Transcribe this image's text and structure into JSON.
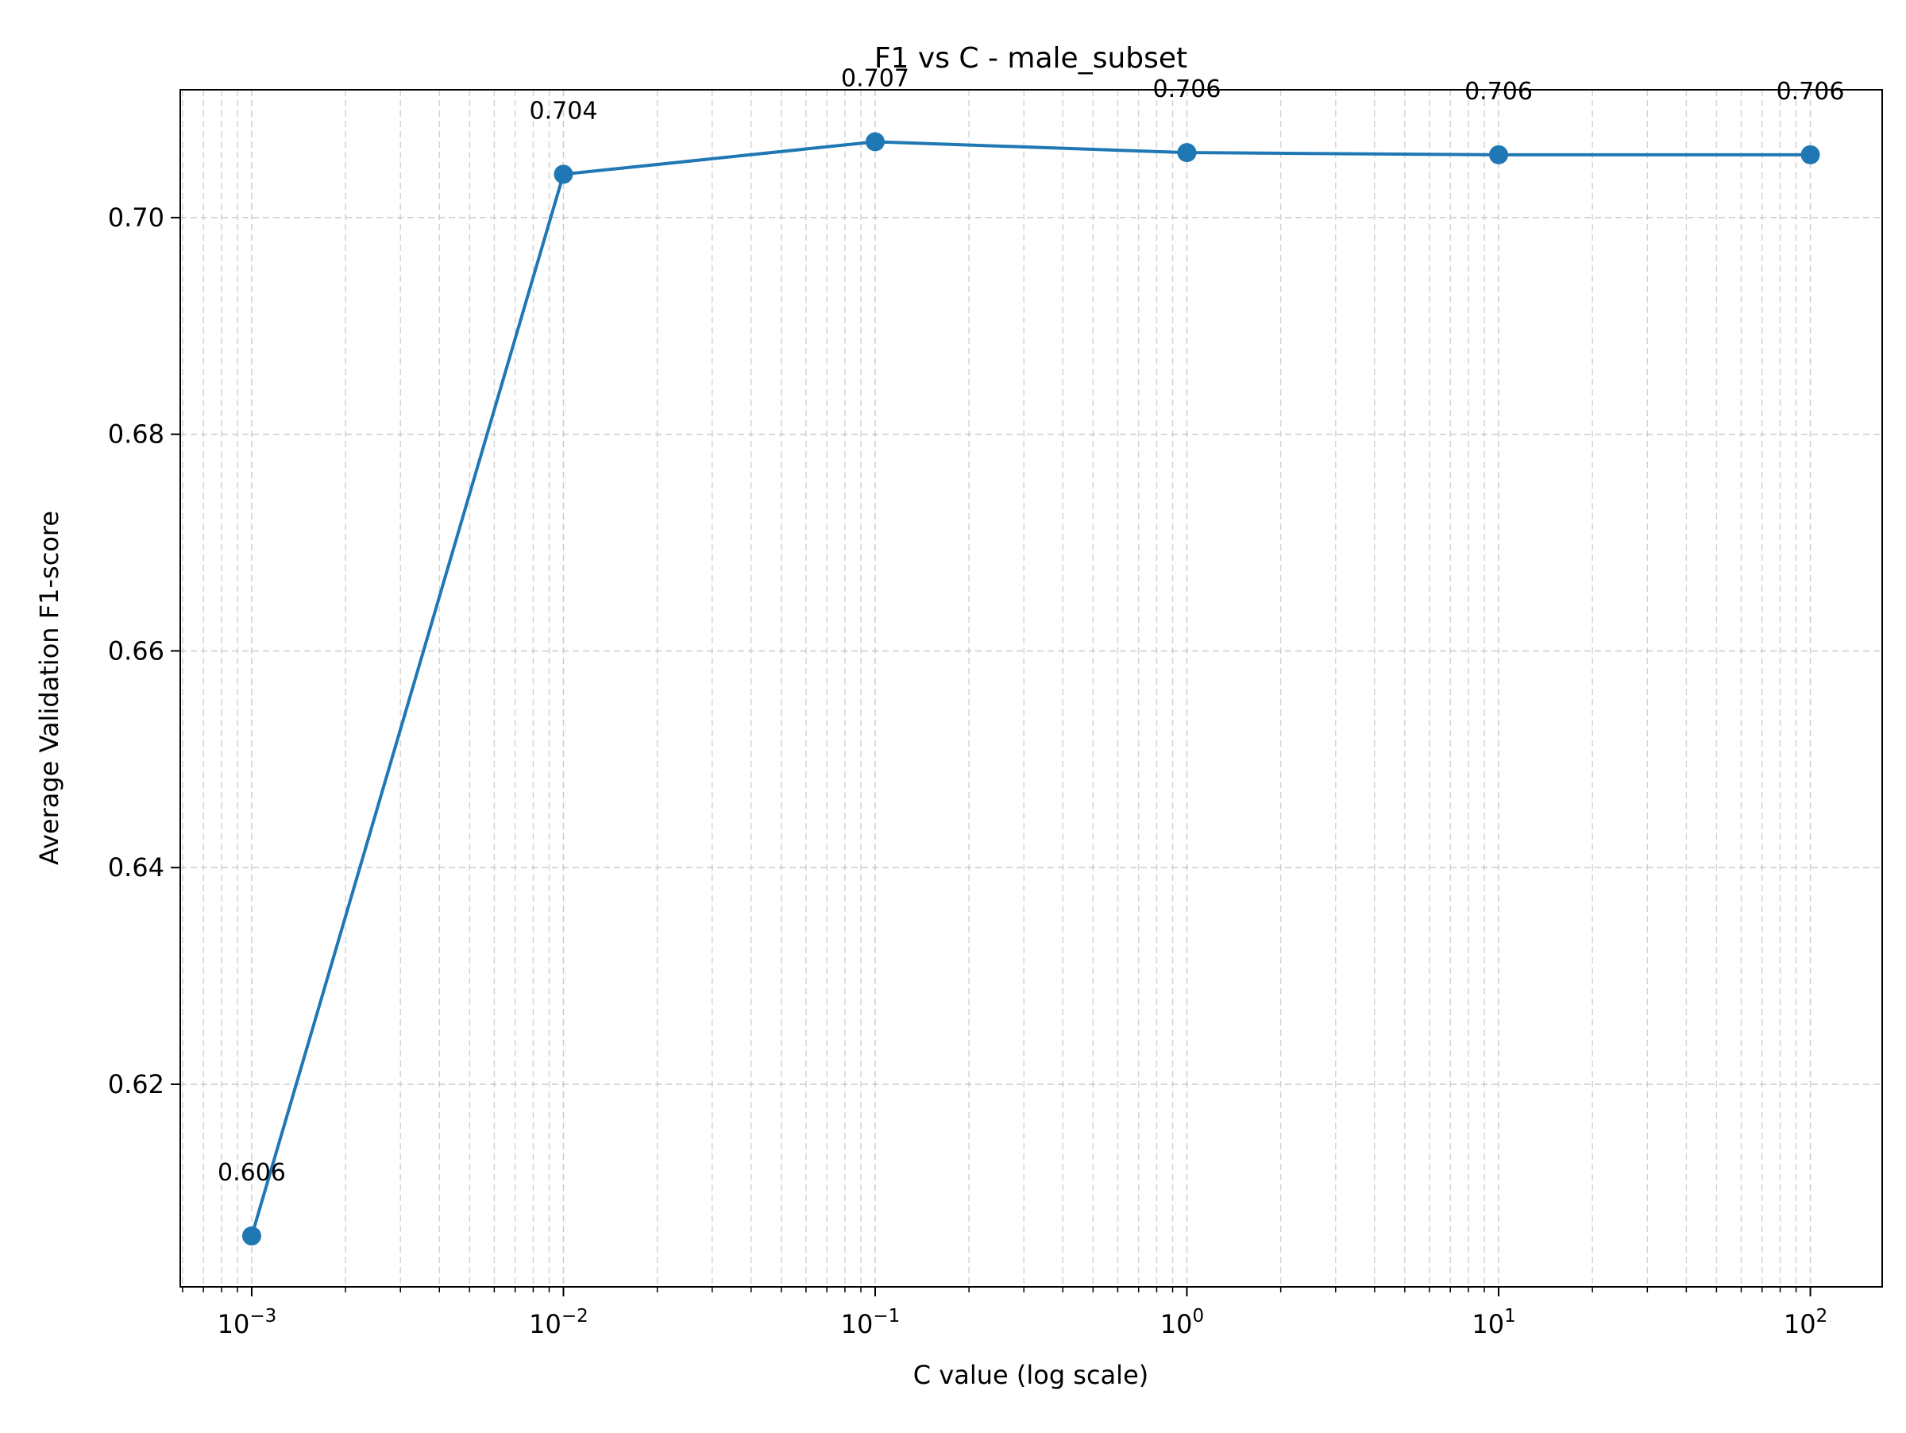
{
  "chart_data": {
    "type": "line",
    "title": "F1 vs C - male_subset",
    "xlabel": "C value (log scale)",
    "ylabel": "Average Validation F1-score",
    "x_scale": "log",
    "x": [
      0.001,
      0.01,
      0.1,
      1,
      10,
      100
    ],
    "series": [
      {
        "values": [
          0.606,
          0.704,
          0.707,
          0.706,
          0.7058,
          0.7058
        ],
        "color": "#1f77b4",
        "marker": "circle"
      }
    ],
    "data_labels": [
      "0.606",
      "0.704",
      "0.707",
      "0.706",
      "0.706",
      "0.706"
    ],
    "xlim": [
      0.00059,
      170
    ],
    "ylim": [
      0.6013,
      0.7118
    ],
    "x_ticks": [
      {
        "value": 0.001,
        "base": "10",
        "exp": "−3"
      },
      {
        "value": 0.01,
        "base": "10",
        "exp": "−2"
      },
      {
        "value": 0.1,
        "base": "10",
        "exp": "−1"
      },
      {
        "value": 1,
        "base": "10",
        "exp": "0"
      },
      {
        "value": 10,
        "base": "10",
        "exp": "1"
      },
      {
        "value": 100,
        "base": "10",
        "exp": "2"
      }
    ],
    "y_ticks": [
      {
        "value": 0.62,
        "label": "0.62"
      },
      {
        "value": 0.64,
        "label": "0.64"
      },
      {
        "value": 0.66,
        "label": "0.66"
      },
      {
        "value": 0.68,
        "label": "0.68"
      },
      {
        "value": 0.7,
        "label": "0.70"
      }
    ],
    "grid": true,
    "grid_style": "dashed"
  }
}
